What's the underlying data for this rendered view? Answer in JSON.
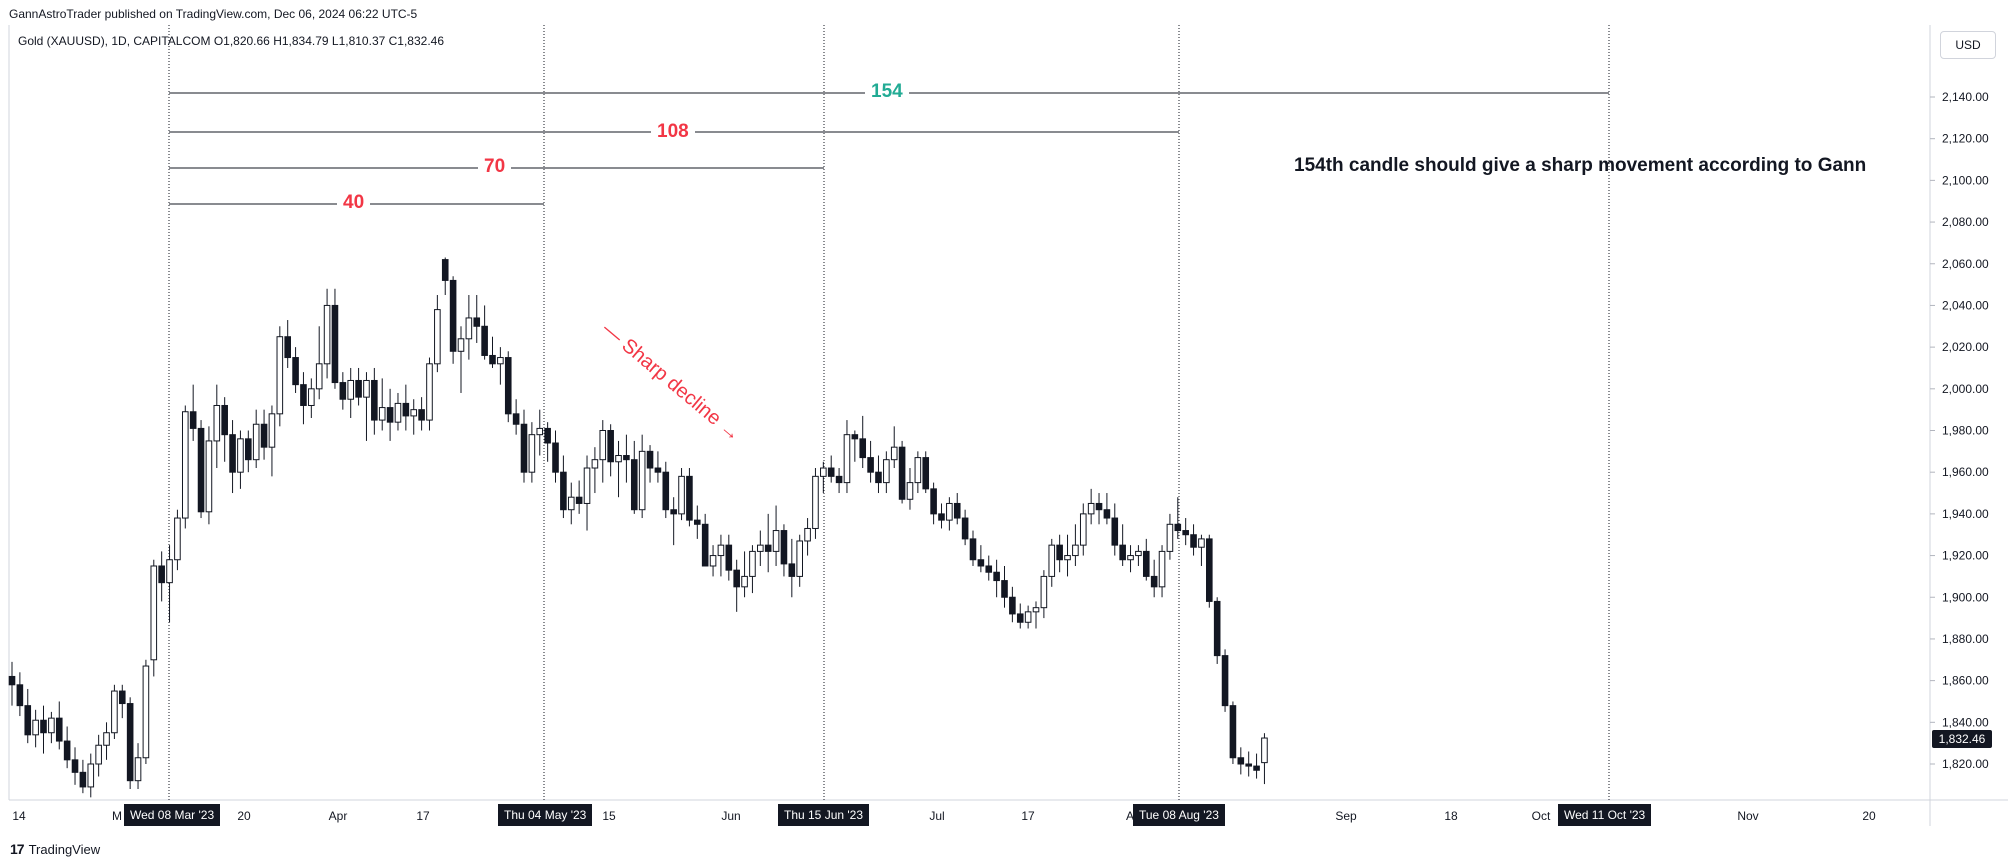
{
  "header": {
    "published": "GannAstroTrader published on TradingView.com, Dec 06, 2024 06:22 UTC-5",
    "symbol_info": "Gold (XAUUSD), 1D, CAPITALCOM  O1,820.66  H1,834.79  L1,810.37  C1,832.46",
    "currency": "USD"
  },
  "footer": {
    "logo": "17",
    "brand": "TradingView"
  },
  "annotations": {
    "count_154": "154",
    "count_108": "108",
    "count_70": "70",
    "count_40": "40",
    "note": "154th candle should give a sharp movement according to Gann",
    "sharp_decline": "— Sharp decline →"
  },
  "marker_dates": {
    "start": "Wed 08 Mar '23",
    "d40": "Thu 04 May '23",
    "d70": "Thu 15 Jun '23",
    "d108": "Tue 08 Aug '23",
    "d154": "Wed 11 Oct '23"
  },
  "colors": {
    "green": "#22ab94",
    "red": "#f23645",
    "candle": "#131722",
    "grid": "#e0e3eb"
  },
  "chart_data": {
    "type": "candlestick",
    "title": "Gold (XAUUSD), 1D, CAPITALCOM",
    "x_ticks": [
      "14",
      "M",
      "20",
      "Apr",
      "17",
      "15",
      "Jun",
      "Jul",
      "17",
      "A",
      "Sep",
      "18",
      "Oct",
      "Nov",
      "20"
    ],
    "y_ticks": [
      "1,820.00",
      "1,840.00",
      "1,860.00",
      "1,880.00",
      "1,900.00",
      "1,920.00",
      "1,940.00",
      "1,960.00",
      "1,980.00",
      "2,000.00",
      "2,020.00",
      "2,040.00",
      "2,060.00",
      "2,080.00",
      "2,100.00",
      "2,120.00",
      "2,140.00"
    ],
    "ylim": [
      1805,
      2150
    ],
    "last_price": "1,832.46",
    "candles": [
      {
        "o": 1862,
        "h": 1869,
        "l": 1848,
        "c": 1858
      },
      {
        "o": 1858,
        "h": 1864,
        "l": 1843,
        "c": 1848
      },
      {
        "o": 1848,
        "h": 1856,
        "l": 1830,
        "c": 1834
      },
      {
        "o": 1834,
        "h": 1846,
        "l": 1828,
        "c": 1841
      },
      {
        "o": 1841,
        "h": 1848,
        "l": 1825,
        "c": 1835
      },
      {
        "o": 1835,
        "h": 1845,
        "l": 1830,
        "c": 1842
      },
      {
        "o": 1842,
        "h": 1850,
        "l": 1827,
        "c": 1831
      },
      {
        "o": 1831,
        "h": 1838,
        "l": 1818,
        "c": 1822
      },
      {
        "o": 1822,
        "h": 1828,
        "l": 1810,
        "c": 1816
      },
      {
        "o": 1816,
        "h": 1822,
        "l": 1806,
        "c": 1809
      },
      {
        "o": 1809,
        "h": 1825,
        "l": 1804,
        "c": 1820
      },
      {
        "o": 1820,
        "h": 1834,
        "l": 1814,
        "c": 1829
      },
      {
        "o": 1829,
        "h": 1840,
        "l": 1822,
        "c": 1835
      },
      {
        "o": 1835,
        "h": 1858,
        "l": 1832,
        "c": 1855
      },
      {
        "o": 1855,
        "h": 1858,
        "l": 1842,
        "c": 1849
      },
      {
        "o": 1849,
        "h": 1852,
        "l": 1808,
        "c": 1812
      },
      {
        "o": 1812,
        "h": 1830,
        "l": 1808,
        "c": 1823
      },
      {
        "o": 1823,
        "h": 1870,
        "l": 1820,
        "c": 1867
      },
      {
        "o": 1870,
        "h": 1918,
        "l": 1862,
        "c": 1915
      },
      {
        "o": 1915,
        "h": 1922,
        "l": 1898,
        "c": 1907
      },
      {
        "o": 1907,
        "h": 1925,
        "l": 1888,
        "c": 1918
      },
      {
        "o": 1918,
        "h": 1942,
        "l": 1913,
        "c": 1938
      },
      {
        "o": 1938,
        "h": 1992,
        "l": 1933,
        "c": 1989
      },
      {
        "o": 1989,
        "h": 2002,
        "l": 1975,
        "c": 1981
      },
      {
        "o": 1981,
        "h": 1985,
        "l": 1938,
        "c": 1941
      },
      {
        "o": 1941,
        "h": 1982,
        "l": 1935,
        "c": 1975
      },
      {
        "o": 1975,
        "h": 2002,
        "l": 1962,
        "c": 1992
      },
      {
        "o": 1992,
        "h": 1996,
        "l": 1965,
        "c": 1978
      },
      {
        "o": 1978,
        "h": 1985,
        "l": 1950,
        "c": 1960
      },
      {
        "o": 1960,
        "h": 1980,
        "l": 1952,
        "c": 1976
      },
      {
        "o": 1976,
        "h": 1980,
        "l": 1960,
        "c": 1966
      },
      {
        "o": 1966,
        "h": 1990,
        "l": 1962,
        "c": 1983
      },
      {
        "o": 1983,
        "h": 1990,
        "l": 1966,
        "c": 1972
      },
      {
        "o": 1972,
        "h": 1992,
        "l": 1958,
        "c": 1988
      },
      {
        "o": 1988,
        "h": 2030,
        "l": 1982,
        "c": 2025
      },
      {
        "o": 2025,
        "h": 2033,
        "l": 2010,
        "c": 2015
      },
      {
        "o": 2015,
        "h": 2020,
        "l": 1998,
        "c": 2002
      },
      {
        "o": 2002,
        "h": 2008,
        "l": 1983,
        "c": 1992
      },
      {
        "o": 1992,
        "h": 2005,
        "l": 1986,
        "c": 2000
      },
      {
        "o": 2000,
        "h": 2030,
        "l": 1995,
        "c": 2012
      },
      {
        "o": 2012,
        "h": 2048,
        "l": 2005,
        "c": 2040
      },
      {
        "o": 2040,
        "h": 2048,
        "l": 2000,
        "c": 2003
      },
      {
        "o": 2003,
        "h": 2008,
        "l": 1990,
        "c": 1995
      },
      {
        "o": 1995,
        "h": 2010,
        "l": 1986,
        "c": 2004
      },
      {
        "o": 2004,
        "h": 2010,
        "l": 1992,
        "c": 1996
      },
      {
        "o": 1996,
        "h": 2008,
        "l": 1975,
        "c": 2004
      },
      {
        "o": 2004,
        "h": 2010,
        "l": 1978,
        "c": 1985
      },
      {
        "o": 1985,
        "h": 2005,
        "l": 1980,
        "c": 1991
      },
      {
        "o": 1991,
        "h": 2000,
        "l": 1975,
        "c": 1984
      },
      {
        "o": 1984,
        "h": 1998,
        "l": 1980,
        "c": 1993
      },
      {
        "o": 1993,
        "h": 2002,
        "l": 1980,
        "c": 1987
      },
      {
        "o": 1987,
        "h": 1995,
        "l": 1978,
        "c": 1990
      },
      {
        "o": 1990,
        "h": 1996,
        "l": 1980,
        "c": 1985
      },
      {
        "o": 1985,
        "h": 2015,
        "l": 1980,
        "c": 2012
      },
      {
        "o": 2012,
        "h": 2045,
        "l": 2008,
        "c": 2038
      },
      {
        "o": 2062,
        "h": 2063,
        "l": 2045,
        "c": 2052
      },
      {
        "o": 2052,
        "h": 2054,
        "l": 2012,
        "c": 2018
      },
      {
        "o": 2018,
        "h": 2030,
        "l": 1998,
        "c": 2024
      },
      {
        "o": 2024,
        "h": 2045,
        "l": 2014,
        "c": 2034
      },
      {
        "o": 2034,
        "h": 2045,
        "l": 2022,
        "c": 2030
      },
      {
        "o": 2030,
        "h": 2040,
        "l": 2014,
        "c": 2016
      },
      {
        "o": 2016,
        "h": 2025,
        "l": 2010,
        "c": 2012
      },
      {
        "o": 2012,
        "h": 2020,
        "l": 2002,
        "c": 2015
      },
      {
        "o": 2015,
        "h": 2018,
        "l": 1984,
        "c": 1988
      },
      {
        "o": 1988,
        "h": 1995,
        "l": 1978,
        "c": 1983
      },
      {
        "o": 1983,
        "h": 1990,
        "l": 1955,
        "c": 1960
      },
      {
        "o": 1960,
        "h": 1984,
        "l": 1955,
        "c": 1978
      },
      {
        "o": 1978,
        "h": 1990,
        "l": 1968,
        "c": 1981
      },
      {
        "o": 1981,
        "h": 1984,
        "l": 1965,
        "c": 1974
      },
      {
        "o": 1974,
        "h": 1980,
        "l": 1955,
        "c": 1960
      },
      {
        "o": 1960,
        "h": 1968,
        "l": 1938,
        "c": 1942
      },
      {
        "o": 1942,
        "h": 1955,
        "l": 1935,
        "c": 1948
      },
      {
        "o": 1948,
        "h": 1956,
        "l": 1940,
        "c": 1945
      },
      {
        "o": 1945,
        "h": 1968,
        "l": 1932,
        "c": 1962
      },
      {
        "o": 1962,
        "h": 1972,
        "l": 1950,
        "c": 1966
      },
      {
        "o": 1966,
        "h": 1985,
        "l": 1955,
        "c": 1980
      },
      {
        "o": 1980,
        "h": 1983,
        "l": 1958,
        "c": 1965
      },
      {
        "o": 1965,
        "h": 1975,
        "l": 1948,
        "c": 1968
      },
      {
        "o": 1968,
        "h": 1978,
        "l": 1955,
        "c": 1966
      },
      {
        "o": 1966,
        "h": 1975,
        "l": 1940,
        "c": 1942
      },
      {
        "o": 1942,
        "h": 1978,
        "l": 1938,
        "c": 1970
      },
      {
        "o": 1970,
        "h": 1973,
        "l": 1955,
        "c": 1962
      },
      {
        "o": 1962,
        "h": 1970,
        "l": 1955,
        "c": 1960
      },
      {
        "o": 1960,
        "h": 1965,
        "l": 1938,
        "c": 1942
      },
      {
        "o": 1942,
        "h": 1948,
        "l": 1925,
        "c": 1940
      },
      {
        "o": 1940,
        "h": 1962,
        "l": 1937,
        "c": 1958
      },
      {
        "o": 1958,
        "h": 1962,
        "l": 1934,
        "c": 1937
      },
      {
        "o": 1937,
        "h": 1944,
        "l": 1928,
        "c": 1935
      },
      {
        "o": 1935,
        "h": 1940,
        "l": 1915,
        "c": 1915
      },
      {
        "o": 1915,
        "h": 1925,
        "l": 1910,
        "c": 1920
      },
      {
        "o": 1920,
        "h": 1930,
        "l": 1910,
        "c": 1925
      },
      {
        "o": 1925,
        "h": 1930,
        "l": 1908,
        "c": 1913
      },
      {
        "o": 1913,
        "h": 1918,
        "l": 1893,
        "c": 1905
      },
      {
        "o": 1905,
        "h": 1922,
        "l": 1900,
        "c": 1910
      },
      {
        "o": 1910,
        "h": 1925,
        "l": 1902,
        "c": 1922
      },
      {
        "o": 1922,
        "h": 1932,
        "l": 1915,
        "c": 1925
      },
      {
        "o": 1925,
        "h": 1940,
        "l": 1912,
        "c": 1922
      },
      {
        "o": 1922,
        "h": 1944,
        "l": 1915,
        "c": 1932
      },
      {
        "o": 1932,
        "h": 1935,
        "l": 1910,
        "c": 1916
      },
      {
        "o": 1916,
        "h": 1928,
        "l": 1900,
        "c": 1910
      },
      {
        "o": 1910,
        "h": 1930,
        "l": 1905,
        "c": 1927
      },
      {
        "o": 1927,
        "h": 1938,
        "l": 1920,
        "c": 1933
      },
      {
        "o": 1933,
        "h": 1962,
        "l": 1928,
        "c": 1958
      },
      {
        "o": 1958,
        "h": 1965,
        "l": 1950,
        "c": 1962
      },
      {
        "o": 1962,
        "h": 1968,
        "l": 1955,
        "c": 1958
      },
      {
        "o": 1958,
        "h": 1962,
        "l": 1950,
        "c": 1955
      },
      {
        "o": 1955,
        "h": 1985,
        "l": 1950,
        "c": 1978
      },
      {
        "o": 1978,
        "h": 1980,
        "l": 1965,
        "c": 1976
      },
      {
        "o": 1976,
        "h": 1987,
        "l": 1962,
        "c": 1967
      },
      {
        "o": 1967,
        "h": 1975,
        "l": 1955,
        "c": 1960
      },
      {
        "o": 1960,
        "h": 1968,
        "l": 1950,
        "c": 1955
      },
      {
        "o": 1955,
        "h": 1970,
        "l": 1950,
        "c": 1966
      },
      {
        "o": 1966,
        "h": 1982,
        "l": 1962,
        "c": 1972
      },
      {
        "o": 1972,
        "h": 1975,
        "l": 1945,
        "c": 1947
      },
      {
        "o": 1947,
        "h": 1962,
        "l": 1942,
        "c": 1955
      },
      {
        "o": 1955,
        "h": 1970,
        "l": 1950,
        "c": 1967
      },
      {
        "o": 1967,
        "h": 1970,
        "l": 1950,
        "c": 1952
      },
      {
        "o": 1952,
        "h": 1955,
        "l": 1935,
        "c": 1940
      },
      {
        "o": 1940,
        "h": 1945,
        "l": 1933,
        "c": 1937
      },
      {
        "o": 1937,
        "h": 1948,
        "l": 1932,
        "c": 1945
      },
      {
        "o": 1945,
        "h": 1950,
        "l": 1935,
        "c": 1938
      },
      {
        "o": 1938,
        "h": 1942,
        "l": 1925,
        "c": 1928
      },
      {
        "o": 1928,
        "h": 1932,
        "l": 1915,
        "c": 1918
      },
      {
        "o": 1918,
        "h": 1925,
        "l": 1912,
        "c": 1915
      },
      {
        "o": 1915,
        "h": 1920,
        "l": 1908,
        "c": 1912
      },
      {
        "o": 1912,
        "h": 1918,
        "l": 1900,
        "c": 1908
      },
      {
        "o": 1908,
        "h": 1915,
        "l": 1895,
        "c": 1900
      },
      {
        "o": 1900,
        "h": 1905,
        "l": 1888,
        "c": 1892
      },
      {
        "o": 1892,
        "h": 1897,
        "l": 1885,
        "c": 1888
      },
      {
        "o": 1888,
        "h": 1896,
        "l": 1885,
        "c": 1893
      },
      {
        "o": 1893,
        "h": 1898,
        "l": 1885,
        "c": 1895
      },
      {
        "o": 1895,
        "h": 1913,
        "l": 1890,
        "c": 1910
      },
      {
        "o": 1910,
        "h": 1928,
        "l": 1905,
        "c": 1925
      },
      {
        "o": 1925,
        "h": 1930,
        "l": 1912,
        "c": 1918
      },
      {
        "o": 1918,
        "h": 1930,
        "l": 1910,
        "c": 1920
      },
      {
        "o": 1920,
        "h": 1935,
        "l": 1915,
        "c": 1925
      },
      {
        "o": 1925,
        "h": 1945,
        "l": 1920,
        "c": 1940
      },
      {
        "o": 1940,
        "h": 1952,
        "l": 1935,
        "c": 1945
      },
      {
        "o": 1945,
        "h": 1950,
        "l": 1935,
        "c": 1942
      },
      {
        "o": 1942,
        "h": 1950,
        "l": 1935,
        "c": 1938
      },
      {
        "o": 1938,
        "h": 1945,
        "l": 1920,
        "c": 1925
      },
      {
        "o": 1925,
        "h": 1935,
        "l": 1915,
        "c": 1918
      },
      {
        "o": 1918,
        "h": 1925,
        "l": 1912,
        "c": 1920
      },
      {
        "o": 1920,
        "h": 1925,
        "l": 1915,
        "c": 1922
      },
      {
        "o": 1922,
        "h": 1928,
        "l": 1908,
        "c": 1910
      },
      {
        "o": 1910,
        "h": 1918,
        "l": 1900,
        "c": 1905
      },
      {
        "o": 1905,
        "h": 1925,
        "l": 1900,
        "c": 1922
      },
      {
        "o": 1922,
        "h": 1940,
        "l": 1918,
        "c": 1935
      },
      {
        "o": 1935,
        "h": 1948,
        "l": 1928,
        "c": 1932
      },
      {
        "o": 1932,
        "h": 1938,
        "l": 1925,
        "c": 1930
      },
      {
        "o": 1930,
        "h": 1935,
        "l": 1920,
        "c": 1924
      },
      {
        "o": 1924,
        "h": 1930,
        "l": 1915,
        "c": 1928
      },
      {
        "o": 1928,
        "h": 1930,
        "l": 1895,
        "c": 1898
      },
      {
        "o": 1898,
        "h": 1900,
        "l": 1868,
        "c": 1872
      },
      {
        "o": 1872,
        "h": 1875,
        "l": 1845,
        "c": 1848
      },
      {
        "o": 1848,
        "h": 1850,
        "l": 1820,
        "c": 1823
      },
      {
        "o": 1823,
        "h": 1828,
        "l": 1815,
        "c": 1820
      },
      {
        "o": 1820,
        "h": 1826,
        "l": 1814,
        "c": 1819
      },
      {
        "o": 1819,
        "h": 1825,
        "l": 1813,
        "c": 1817
      },
      {
        "o": 1820.66,
        "h": 1834.79,
        "l": 1810.37,
        "c": 1832.46
      }
    ]
  }
}
